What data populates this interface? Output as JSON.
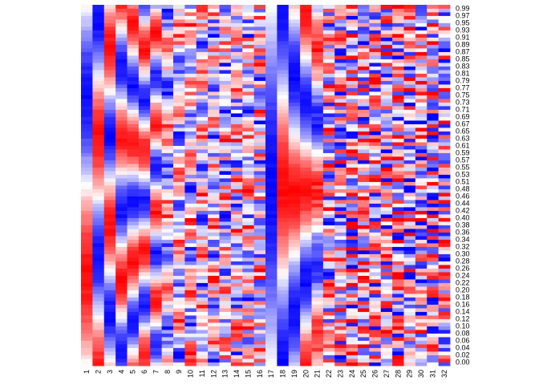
{
  "chart_data": {
    "type": "heatmap",
    "title": "",
    "xlabel": "",
    "ylabel": "",
    "x_categories": [
      "1",
      "2",
      "3",
      "4",
      "5",
      "6",
      "7",
      "8",
      "9",
      "10",
      "11",
      "12",
      "13",
      "14",
      "15",
      "16",
      "17",
      "18",
      "19",
      "20",
      "21",
      "22",
      "23",
      "24",
      "25",
      "26",
      "27",
      "28",
      "29",
      "30",
      "31",
      "32"
    ],
    "y_ticks": [
      "0.00",
      "0.02",
      "0.04",
      "0.06",
      "0.08",
      "0.10",
      "0.12",
      "0.14",
      "0.16",
      "0.18",
      "0.20",
      "0.22",
      "0.24",
      "0.26",
      "0.28",
      "0.30",
      "0.32",
      "0.34",
      "0.36",
      "0.38",
      "0.40",
      "0.42",
      "0.44",
      "0.46",
      "0.48",
      "0.51",
      "0.53",
      "0.55",
      "0.57",
      "0.59",
      "0.61",
      "0.63",
      "0.65",
      "0.67",
      "0.69",
      "0.71",
      "0.73",
      "0.75",
      "0.77",
      "0.79",
      "0.81",
      "0.83",
      "0.85",
      "0.87",
      "0.89",
      "0.91",
      "0.93",
      "0.95",
      "0.97",
      "0.99"
    ],
    "y_axis_position": "right",
    "x_axis_position": "bottom",
    "color_scale": {
      "low": "#0000ff",
      "mid": "#ffffff",
      "high": "#ff0000",
      "range": [
        -1,
        1
      ]
    },
    "cells_per_column": 100,
    "column_patterns": [
      {
        "col": "1",
        "freq": 1,
        "phase": -1.5708,
        "noise": 0.05
      },
      {
        "col": "2",
        "freq": 1.5,
        "phase": 0.3,
        "noise": 0.05
      },
      {
        "col": "3",
        "freq": 2,
        "phase": 1.4,
        "noise": 0.05
      },
      {
        "col": "4",
        "freq": 2.5,
        "phase": 2.6,
        "noise": 0.06
      },
      {
        "col": "5",
        "freq": 3,
        "phase": 0.9,
        "noise": 0.06
      },
      {
        "col": "6",
        "freq": 3.5,
        "phase": -0.6,
        "noise": 0.08
      },
      {
        "col": "7",
        "freq": 4,
        "phase": 1.8,
        "noise": 0.1
      },
      {
        "col": "8",
        "freq": 4.5,
        "phase": 0.4,
        "noise": 0.35
      },
      {
        "col": "9",
        "freq": 5,
        "phase": 2.2,
        "noise": 0.4
      },
      {
        "col": "10",
        "freq": 5.5,
        "phase": -1.1,
        "noise": 0.45
      },
      {
        "col": "11",
        "freq": 6,
        "phase": 0.7,
        "noise": 0.5
      },
      {
        "col": "12",
        "freq": 6.5,
        "phase": 2.9,
        "noise": 0.55
      },
      {
        "col": "13",
        "freq": 7,
        "phase": -2.0,
        "noise": 0.6
      },
      {
        "col": "14",
        "freq": 7.5,
        "phase": 1.2,
        "noise": 0.65
      },
      {
        "col": "15",
        "freq": 8,
        "phase": 0.1,
        "noise": 0.7
      },
      {
        "col": "16",
        "freq": 8.5,
        "phase": -0.9,
        "noise": 0.75
      },
      {
        "col": "17",
        "freq": 0.5,
        "phase": 1.5708,
        "noise": 0.03
      },
      {
        "col": "18",
        "freq": 1,
        "phase": 3.1416,
        "noise": 0.03
      },
      {
        "col": "19",
        "freq": 1.5,
        "phase": 1.8,
        "noise": 0.04
      },
      {
        "col": "20",
        "freq": 2,
        "phase": 0.2,
        "noise": 0.05
      },
      {
        "col": "21",
        "freq": 2.5,
        "phase": -1.3,
        "noise": 0.15
      },
      {
        "col": "22",
        "freq": 9,
        "phase": 0.5,
        "noise": 0.8
      },
      {
        "col": "23",
        "freq": 9.5,
        "phase": 2.1,
        "noise": 0.85
      },
      {
        "col": "24",
        "freq": 10,
        "phase": -0.4,
        "noise": 0.9
      },
      {
        "col": "25",
        "freq": 10.5,
        "phase": 1.0,
        "noise": 0.9
      },
      {
        "col": "26",
        "freq": 11,
        "phase": 2.5,
        "noise": 0.9
      },
      {
        "col": "27",
        "freq": 11.5,
        "phase": -1.7,
        "noise": 0.9
      },
      {
        "col": "28",
        "freq": 12,
        "phase": 0.3,
        "noise": 0.9
      },
      {
        "col": "29",
        "freq": 12.5,
        "phase": 1.6,
        "noise": 0.9
      },
      {
        "col": "30",
        "freq": 13,
        "phase": -2.4,
        "noise": 0.9
      },
      {
        "col": "31",
        "freq": 13.5,
        "phase": 0.8,
        "noise": 0.9
      },
      {
        "col": "32",
        "freq": 14,
        "phase": 2.0,
        "noise": 0.9
      }
    ]
  }
}
